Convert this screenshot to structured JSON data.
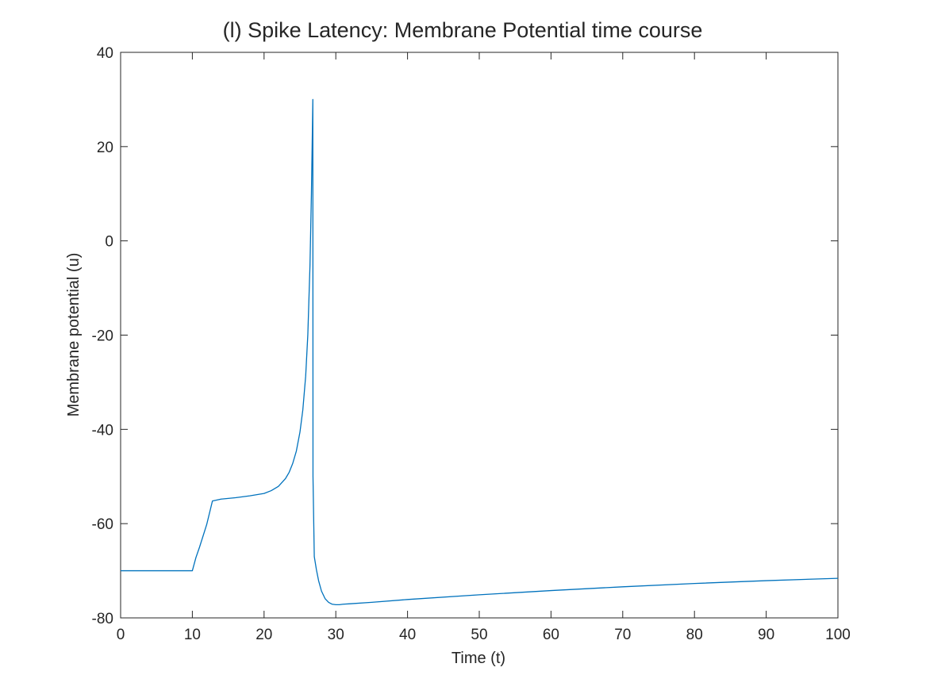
{
  "chart_data": {
    "type": "line",
    "title": "(l) Spike Latency: Membrane Potential time course",
    "xlabel": "Time (t)",
    "ylabel": "Membrane potential (u)",
    "xlim": [
      0,
      100
    ],
    "ylim": [
      -80,
      40
    ],
    "xticks": [
      0,
      10,
      20,
      30,
      40,
      50,
      60,
      70,
      80,
      90,
      100
    ],
    "yticks": [
      -80,
      -60,
      -40,
      -20,
      0,
      20,
      40
    ],
    "grid": false,
    "legend": "none",
    "colors": {
      "line": "#0072BD",
      "axes": "#262626",
      "background": "#ffffff"
    },
    "series": [
      {
        "x": [
          0,
          10,
          10.5,
          11,
          12,
          12.8,
          14,
          16,
          18,
          20,
          21,
          22,
          23,
          23.5,
          24,
          24.5,
          25,
          25.4,
          25.8,
          26.1,
          26.4,
          26.6,
          26.7,
          26.8,
          26.82,
          27.0,
          27.3,
          27.6,
          28,
          28.5,
          29,
          29.5,
          30,
          30.5,
          31,
          32,
          35,
          40,
          50,
          60,
          70,
          80,
          90,
          100
        ],
        "y": [
          -70,
          -70,
          -67.2,
          -65.0,
          -60.2,
          -55.2,
          -54.8,
          -54.5,
          -54.1,
          -53.6,
          -53.0,
          -52.1,
          -50.4,
          -49.1,
          -47.2,
          -44.6,
          -40.6,
          -35.9,
          -28.7,
          -19.9,
          -5.2,
          10.0,
          20.0,
          30.0,
          -50.0,
          -67.0,
          -69.8,
          -72.1,
          -74.3,
          -75.9,
          -76.7,
          -77.1,
          -77.2,
          -77.2,
          -77.1,
          -77.0,
          -76.7,
          -76.1,
          -75.1,
          -74.2,
          -73.4,
          -72.7,
          -72.1,
          -71.6
        ]
      }
    ]
  }
}
